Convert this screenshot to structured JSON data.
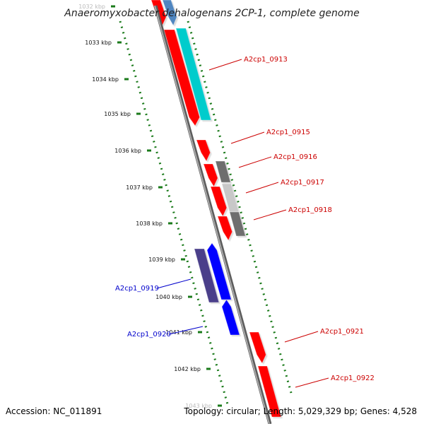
{
  "title": "Anaeromyxobacter dehalogenans 2CP-1, complete genome",
  "footer": {
    "accession": "Accession: NC_011891",
    "summary": "Topology: circular; Length: 5,029,329 bp; Genes: 4,528"
  },
  "colors": {
    "forward_red": "#ff0000",
    "reverse_blue": "#0000ff",
    "navy": "#4a3f8a",
    "cyan": "#00cccc",
    "steelblue": "#4f86c0",
    "gray_dark": "#6e6e6e",
    "gray_light": "#c8c8c8",
    "backbone": "#808080",
    "tick_green": "#1a7a1a",
    "label_red": "#cc0000",
    "label_blue": "#0000cc"
  },
  "scale": {
    "ticks": [
      "1032 kbp",
      "1033 kbp",
      "1034 kbp",
      "1035 kbp",
      "1036 kbp",
      "1037 kbp",
      "1038 kbp",
      "1039 kbp",
      "1040 kbp",
      "1041 kbp",
      "1042 kbp",
      "1043 kbp"
    ]
  },
  "gene_labels": [
    {
      "text": "A2cp1_0913",
      "strand": "forward"
    },
    {
      "text": "A2cp1_0915",
      "strand": "forward"
    },
    {
      "text": "A2cp1_0916",
      "strand": "forward"
    },
    {
      "text": "A2cp1_0917",
      "strand": "forward"
    },
    {
      "text": "A2cp1_0918",
      "strand": "forward"
    },
    {
      "text": "A2cp1_0919",
      "strand": "reverse"
    },
    {
      "text": "A2cp1_0920",
      "strand": "reverse"
    },
    {
      "text": "A2cp1_0921",
      "strand": "forward"
    },
    {
      "text": "A2cp1_0922",
      "strand": "forward"
    }
  ]
}
